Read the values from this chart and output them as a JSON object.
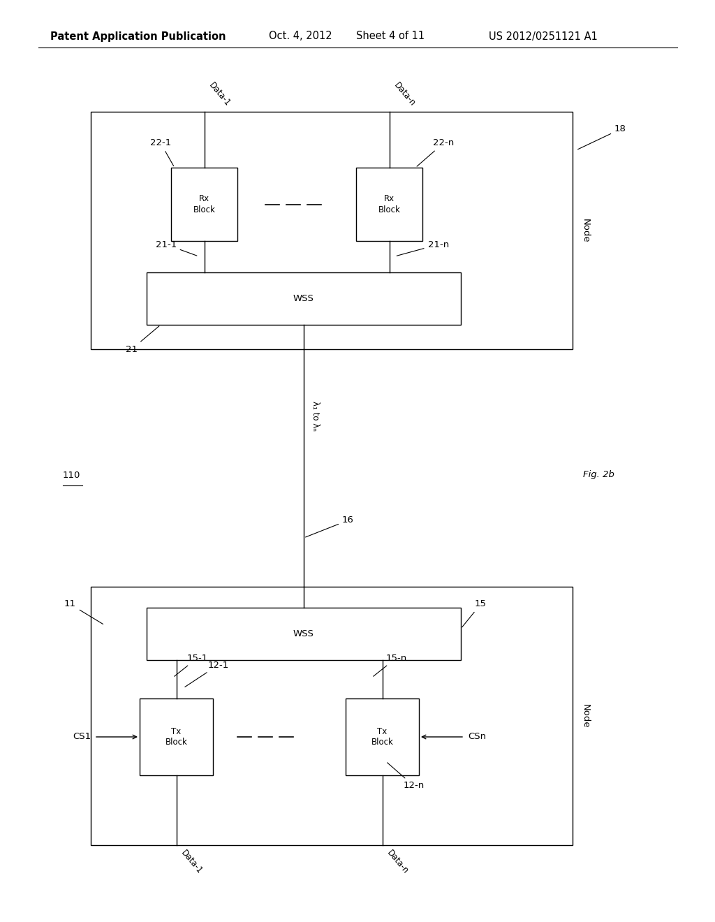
{
  "bg_color": "#ffffff",
  "header_text": "Patent Application Publication",
  "header_date": "Oct. 4, 2012",
  "header_sheet": "Sheet 4 of 11",
  "header_patent": "US 2012/0251121 A1",
  "fig_label": "Fig. 2b",
  "top_node_label": "18",
  "top_node_text": "Node",
  "top_wss_label": "21",
  "top_wss_text": "WSS",
  "top_rx1_label": "22-1",
  "top_rx1_text": "Rx\nBlock",
  "top_rxn_label": "22-n",
  "top_rxn_text": "Rx\nBlock",
  "top_line1_label": "21-1",
  "top_linen_label": "21-n",
  "top_data1": "Data-1",
  "top_datan": "Data-n",
  "bot_node_label": "11",
  "bot_node_text": "Node",
  "bot_wss_label": "15",
  "bot_wss_text": "WSS",
  "bot_tx1_label": "12-1",
  "bot_tx1_text": "Tx\nBlock",
  "bot_txn_label": "12-n",
  "bot_txn_text": "Tx\nBlock",
  "bot_conn1_label": "15-1",
  "bot_connn_label": "15-n",
  "bot_data1": "Data-1",
  "bot_datan": "Data-n",
  "cs1_label": "CS1",
  "csn_label": "CSn",
  "fiber_label": "16",
  "lambda_label": "λ₁ to λₙ",
  "node_label_110": "110"
}
